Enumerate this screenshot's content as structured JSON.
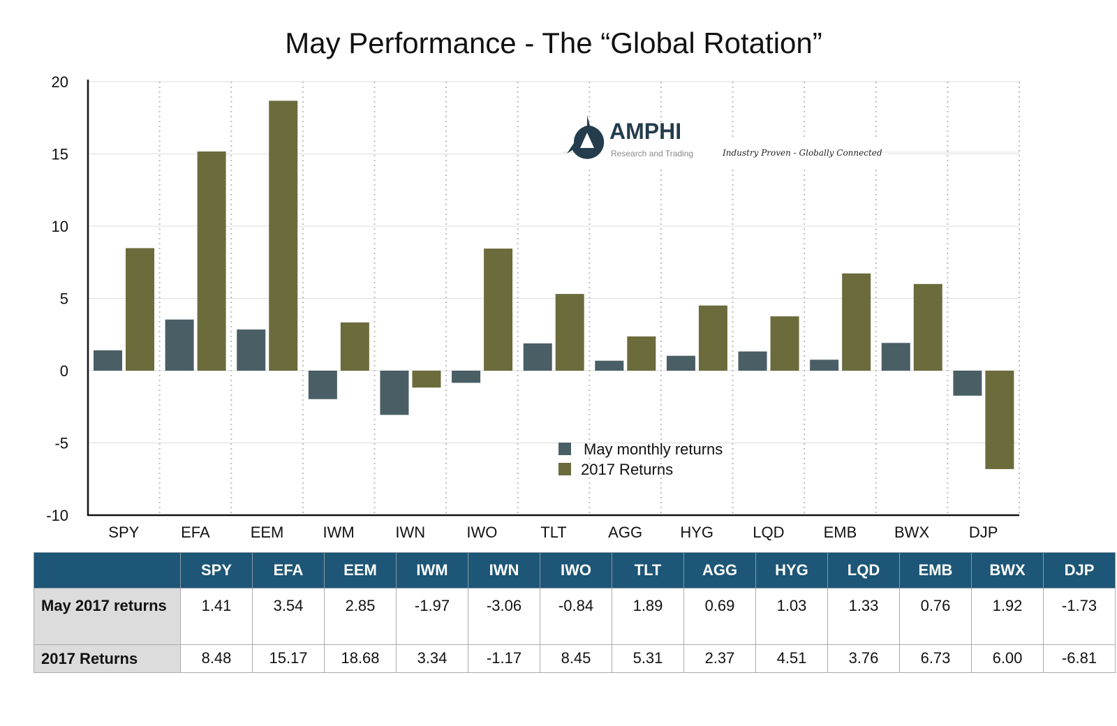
{
  "chart_data": {
    "type": "bar",
    "title": "May Performance - The “Global Rotation”",
    "categories": [
      "SPY",
      "EFA",
      "EEM",
      "IWM",
      "IWN",
      "IWO",
      "TLT",
      "AGG",
      "HYG",
      "LQD",
      "EMB",
      "BWX",
      "DJP"
    ],
    "series": [
      {
        "name": "May monthly returns",
        "color": "#4a5e66",
        "values": [
          1.41,
          3.54,
          2.85,
          -1.97,
          -3.06,
          -0.84,
          1.89,
          0.69,
          1.03,
          1.33,
          0.76,
          1.92,
          -1.73
        ]
      },
      {
        "name": "2017 Returns",
        "color": "#6b6b3c",
        "values": [
          8.48,
          15.17,
          18.68,
          3.34,
          -1.17,
          8.45,
          5.31,
          2.37,
          4.51,
          3.76,
          6.73,
          6.0,
          -6.81
        ]
      }
    ],
    "ylim": [
      -10,
      20
    ],
    "yticks": [
      20,
      15,
      10,
      5,
      0,
      -5,
      -10
    ],
    "grid": true,
    "legend": "center-bottom"
  },
  "logo": {
    "name": "AMPHI",
    "sub": "Research and Trading",
    "tagline": "Industry Proven - Globally Connected"
  },
  "table": {
    "rows": [
      {
        "label": "May 2017 returns",
        "values": [
          "1.41",
          "3.54",
          "2.85",
          "-1.97",
          "-3.06",
          "-0.84",
          "1.89",
          "0.69",
          "1.03",
          "1.33",
          "0.76",
          "1.92",
          "-1.73"
        ]
      },
      {
        "label": "2017 Returns",
        "values": [
          "8.48",
          "15.17",
          "18.68",
          "3.34",
          "-1.17",
          "8.45",
          "5.31",
          "2.37",
          "4.51",
          "3.76",
          "6.73",
          "6.00",
          "-6.81"
        ]
      }
    ],
    "header_color": "#1d5676"
  }
}
